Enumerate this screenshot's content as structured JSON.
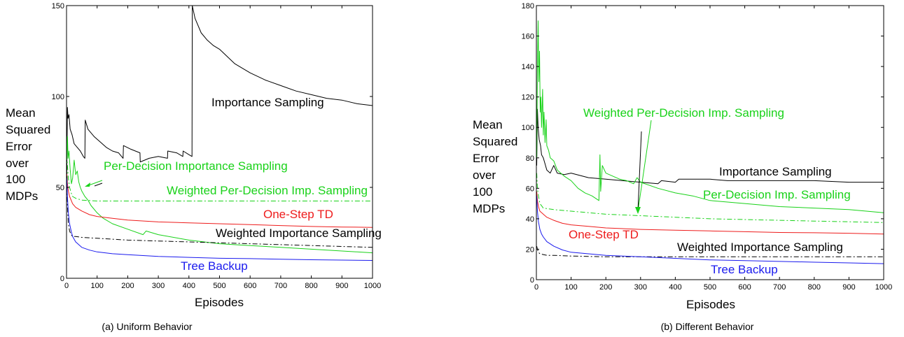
{
  "colors": {
    "black": "#000000",
    "red": "#ee1c1c",
    "green": "#19d219",
    "blue": "#1a1aee"
  },
  "chart_data": [
    {
      "type": "line",
      "caption": "(a) Uniform Behavior",
      "xlabel": "Episodes",
      "ylabel": [
        "Mean",
        "Squared",
        "Error",
        "over",
        "100",
        "MDPs"
      ],
      "xlim": [
        0,
        1000
      ],
      "ylim": [
        0,
        150
      ],
      "xticks": [
        0,
        100,
        200,
        300,
        400,
        500,
        600,
        700,
        800,
        900,
        1000
      ],
      "yticks": [
        0,
        50,
        100,
        150
      ],
      "annotations": [
        {
          "text": "Importance Sampling",
          "color": "black"
        },
        {
          "text": "Per-Decision Importance Sampling",
          "color": "green"
        },
        {
          "text": "Weighted Per-Decision Imp. Sampling",
          "color": "green"
        },
        {
          "text": "One-Step TD",
          "color": "red"
        },
        {
          "text": "Weighted Importance Sampling",
          "color": "black"
        },
        {
          "text": "Tree Backup",
          "color": "blue"
        }
      ],
      "series": [
        {
          "name": "Importance Sampling",
          "color": "black",
          "dash": "solid",
          "x": [
            1,
            3,
            5,
            8,
            12,
            18,
            25,
            35,
            45,
            55,
            60,
            61,
            70,
            90,
            110,
            130,
            150,
            170,
            185,
            186,
            210,
            240,
            241,
            270,
            300,
            330,
            331,
            360,
            380,
            381,
            400,
            410,
            411,
            420,
            440,
            460,
            480,
            500,
            550,
            600,
            650,
            700,
            750,
            800,
            850,
            900,
            950,
            1000
          ],
          "y": [
            58,
            94,
            88,
            90,
            82,
            79,
            74,
            72,
            70,
            67,
            66,
            87,
            82,
            78,
            75,
            72,
            70,
            69,
            66,
            73,
            71,
            69,
            64,
            66,
            67,
            66,
            70,
            69,
            67,
            70,
            68,
            67,
            150,
            143,
            135,
            131,
            128,
            126,
            118,
            113,
            109,
            106,
            103,
            101,
            99,
            98,
            96,
            95
          ]
        },
        {
          "name": "Per-Decision Importance Sampling",
          "color": "green",
          "dash": "solid",
          "x": [
            1,
            3,
            5,
            8,
            12,
            16,
            20,
            25,
            30,
            35,
            40,
            45,
            50,
            60,
            70,
            80,
            100,
            120,
            150,
            200,
            250,
            260,
            300,
            400,
            500,
            600,
            700,
            800,
            900,
            1000
          ],
          "y": [
            65,
            78,
            66,
            70,
            60,
            52,
            55,
            65,
            57,
            59,
            53,
            50,
            48,
            45,
            43,
            40,
            36,
            33,
            30,
            27,
            24,
            26,
            24,
            21,
            19,
            18,
            17,
            16,
            15,
            14
          ]
        },
        {
          "name": "Weighted Per-Decision Imp. Sampling",
          "color": "green",
          "dash": "dashdot",
          "x": [
            1,
            3,
            6,
            10,
            15,
            20,
            30,
            50,
            100,
            200,
            400,
            600,
            800,
            1000
          ],
          "y": [
            68,
            62,
            55,
            50,
            47,
            45,
            44,
            43,
            42.5,
            42.5,
            42.5,
            42.5,
            42.5,
            42.5
          ]
        },
        {
          "name": "One-Step TD",
          "color": "red",
          "dash": "solid",
          "x": [
            1,
            3,
            6,
            10,
            20,
            30,
            50,
            75,
            100,
            150,
            200,
            300,
            400,
            500,
            600,
            700,
            800,
            900,
            1000
          ],
          "y": [
            58,
            52,
            48,
            45,
            41,
            39,
            37,
            35,
            34,
            33,
            32,
            31,
            30.5,
            30,
            29.5,
            29,
            28.5,
            28.2,
            28
          ]
        },
        {
          "name": "Weighted Importance Sampling",
          "color": "black",
          "dash": "dashdot",
          "x": [
            1,
            3,
            6,
            10,
            15,
            20,
            30,
            50,
            100,
            200,
            300,
            400,
            500,
            600,
            700,
            800,
            900,
            1000
          ],
          "y": [
            62,
            40,
            30,
            26,
            24,
            23,
            23,
            22.5,
            22,
            21,
            20.5,
            20,
            19.5,
            19,
            18.5,
            18,
            17.5,
            17
          ]
        },
        {
          "name": "Tree Backup",
          "color": "blue",
          "dash": "solid",
          "x": [
            1,
            3,
            6,
            10,
            15,
            20,
            30,
            50,
            75,
            100,
            150,
            200,
            300,
            400,
            500,
            600,
            700,
            800,
            900,
            1000
          ],
          "y": [
            55,
            45,
            36,
            30,
            26,
            23,
            20,
            17,
            15.5,
            14.5,
            13.5,
            13,
            12,
            11.5,
            11,
            10.8,
            10.5,
            10.2,
            10,
            9.8
          ]
        }
      ]
    },
    {
      "type": "line",
      "caption": "(b) Different Behavior",
      "xlabel": "Episodes",
      "ylabel": [
        "Mean",
        "Squared",
        "Error",
        "over",
        "100",
        "MDPs"
      ],
      "xlim": [
        0,
        1000
      ],
      "ylim": [
        0,
        180
      ],
      "xticks": [
        0,
        100,
        200,
        300,
        400,
        500,
        600,
        700,
        800,
        900,
        1000
      ],
      "yticks": [
        0,
        20,
        40,
        60,
        80,
        100,
        120,
        140,
        160,
        180
      ],
      "annotations": [
        {
          "text": "Weighted Per-Decision Imp. Sampling",
          "color": "green"
        },
        {
          "text": "Importance Sampling",
          "color": "black"
        },
        {
          "text": "Per-Decision Imp. Sampling",
          "color": "green"
        },
        {
          "text": "One-Step TD",
          "color": "red"
        },
        {
          "text": "Weighted Importance Sampling",
          "color": "black"
        },
        {
          "text": "Tree Backup",
          "color": "blue"
        }
      ],
      "series": [
        {
          "name": "Importance Sampling",
          "color": "black",
          "dash": "solid",
          "x": [
            1,
            3,
            5,
            8,
            12,
            15,
            20,
            25,
            30,
            40,
            50,
            60,
            80,
            100,
            150,
            200,
            300,
            350,
            360,
            400,
            410,
            500,
            550,
            600,
            700,
            800,
            900,
            1000
          ],
          "y": [
            75,
            112,
            100,
            92,
            88,
            82,
            80,
            76,
            72,
            70,
            75,
            70,
            69,
            70,
            67,
            66,
            64,
            63,
            65,
            64,
            66,
            66,
            65,
            65,
            65,
            65,
            64,
            64
          ]
        },
        {
          "name": "Per-Decision Imp. Sampling",
          "color": "green",
          "dash": "solid",
          "x": [
            1,
            3,
            5,
            7,
            9,
            11,
            13,
            15,
            18,
            20,
            22,
            25,
            28,
            30,
            35,
            40,
            50,
            60,
            80,
            100,
            120,
            140,
            160,
            180,
            183,
            185,
            190,
            200,
            220,
            240,
            260,
            280,
            290,
            300,
            350,
            400,
            450,
            500,
            600,
            700,
            800,
            900,
            950,
            1000
          ],
          "y": [
            80,
            140,
            170,
            130,
            150,
            110,
            120,
            100,
            125,
            95,
            110,
            90,
            105,
            88,
            85,
            80,
            78,
            72,
            68,
            65,
            60,
            57,
            55,
            52,
            82,
            58,
            75,
            70,
            68,
            66,
            65,
            63,
            67,
            64,
            60,
            57,
            55,
            52,
            50,
            48,
            47,
            46,
            45,
            44
          ]
        },
        {
          "name": "Weighted Per-Decision Imp. Sampling",
          "color": "green",
          "dash": "dashdot",
          "x": [
            1,
            3,
            6,
            10,
            20,
            50,
            100,
            200,
            300,
            400,
            500,
            600,
            700,
            800,
            900,
            1000
          ],
          "y": [
            70,
            60,
            55,
            50,
            47,
            46,
            45,
            43,
            42,
            41,
            40,
            39.5,
            39,
            38.5,
            38,
            37.5
          ]
        },
        {
          "name": "One-Step TD",
          "color": "red",
          "dash": "solid",
          "x": [
            1,
            3,
            6,
            10,
            20,
            30,
            50,
            75,
            100,
            150,
            200,
            300,
            400,
            500,
            600,
            700,
            800,
            900,
            1000
          ],
          "y": [
            58,
            52,
            48,
            45,
            43,
            41,
            39,
            37,
            36,
            35,
            34,
            33,
            32.5,
            32,
            31.5,
            31,
            30.8,
            30.5,
            30
          ]
        },
        {
          "name": "Weighted Importance Sampling",
          "color": "black",
          "dash": "dashdot",
          "x": [
            1,
            3,
            6,
            10,
            20,
            30,
            50,
            100,
            200,
            300,
            400,
            500,
            600,
            700,
            800,
            900,
            1000
          ],
          "y": [
            22,
            20,
            18,
            17,
            16.5,
            16,
            16,
            15.5,
            15,
            15,
            15,
            15,
            15,
            15,
            15,
            15,
            15
          ]
        },
        {
          "name": "Tree Backup",
          "color": "blue",
          "dash": "solid",
          "x": [
            1,
            3,
            6,
            10,
            15,
            20,
            30,
            50,
            75,
            100,
            150,
            200,
            300,
            400,
            500,
            600,
            700,
            800,
            900,
            1000
          ],
          "y": [
            55,
            45,
            38,
            33,
            30,
            28,
            25,
            22,
            19.5,
            18,
            17,
            16,
            15,
            14,
            13,
            12.5,
            12,
            11.5,
            11,
            10.5
          ]
        }
      ]
    }
  ]
}
